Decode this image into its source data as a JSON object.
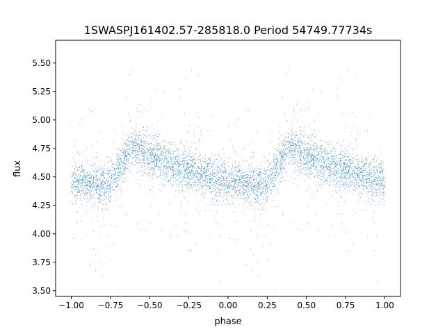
{
  "chart_data": {
    "type": "scatter",
    "title": "1SWASPJ161402.57-285818.0 Period 54749.77734s",
    "xlabel": "phase",
    "ylabel": "flux",
    "xlim": [
      -1.1,
      1.1
    ],
    "ylim": [
      3.45,
      5.7
    ],
    "xticks": [
      -1.0,
      -0.75,
      -0.5,
      -0.25,
      0.0,
      0.25,
      0.5,
      0.75,
      1.0
    ],
    "xtick_labels": [
      "−1.00",
      "−0.75",
      "−0.50",
      "−0.25",
      "0.00",
      "0.25",
      "0.50",
      "0.75",
      "1.00"
    ],
    "yticks": [
      3.5,
      3.75,
      4.0,
      4.25,
      4.5,
      4.75,
      5.0,
      5.25,
      5.5
    ],
    "ytick_labels": [
      "3.50",
      "3.75",
      "4.00",
      "4.25",
      "4.50",
      "4.75",
      "5.00",
      "5.25",
      "5.50"
    ],
    "grid": false,
    "legend": "none",
    "marker_color": "#1f77b4",
    "phase_range": [
      -1.0,
      1.0
    ],
    "profile": {
      "phase": [
        0.0,
        0.05,
        0.1,
        0.15,
        0.2,
        0.25,
        0.3,
        0.35,
        0.4,
        0.45,
        0.5,
        0.55,
        0.6,
        0.65,
        0.7,
        0.75,
        0.8,
        0.85,
        0.9,
        0.95,
        1.0
      ],
      "median_flux": [
        4.46,
        4.45,
        4.44,
        4.43,
        4.42,
        4.45,
        4.58,
        4.7,
        4.75,
        4.74,
        4.7,
        4.66,
        4.63,
        4.6,
        4.57,
        4.55,
        4.53,
        4.51,
        4.49,
        4.47,
        4.46
      ]
    },
    "scatter_sigma": 0.09,
    "outlier_fraction": 0.08,
    "points_per_cycle": 3000
  }
}
